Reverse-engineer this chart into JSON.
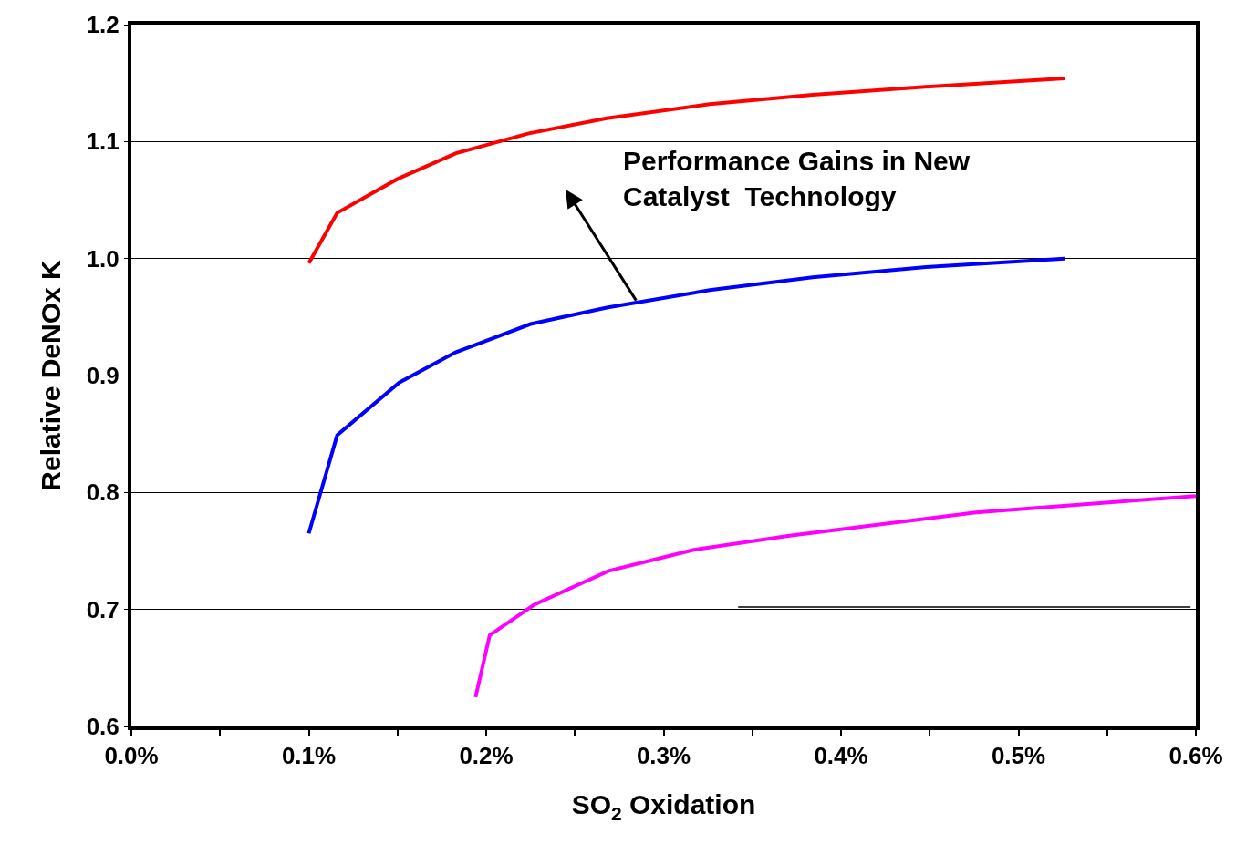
{
  "chart_data": {
    "type": "line",
    "xlabel": "SO$_{2}$ Oxidation",
    "ylabel": "Relative DeNOx K",
    "annotations": [
      "Performance Gains in New\nCatalyst  Technology"
    ],
    "series": [
      {
        "color": "#ff0000",
        "x": [
          0.1,
          0.116,
          0.15,
          0.183,
          0.224,
          0.268,
          0.326,
          0.384,
          0.45,
          0.526
        ],
        "values": [
          0.996,
          1.039,
          1.068,
          1.09,
          1.107,
          1.12,
          1.132,
          1.14,
          1.147,
          1.154
        ]
      },
      {
        "color": "#0000ff",
        "x": [
          0.1,
          0.116,
          0.151,
          0.183,
          0.225,
          0.268,
          0.326,
          0.384,
          0.45,
          0.526
        ],
        "values": [
          0.765,
          0.849,
          0.894,
          0.92,
          0.944,
          0.958,
          0.973,
          0.984,
          0.993,
          1.0
        ]
      },
      {
        "color": "#ff00ff",
        "x": [
          0.194,
          0.202,
          0.227,
          0.269,
          0.317,
          0.371,
          0.476,
          0.6
        ],
        "values": [
          0.625,
          0.678,
          0.704,
          0.733,
          0.751,
          0.763,
          0.783,
          0.797
        ]
      },
      {
        "color": "#000000",
        "x": [
          0.342,
          0.597
        ],
        "values": [
          0.702,
          0.702
        ]
      }
    ],
    "xlim": [
      0,
      0.6
    ],
    "ylim": [
      0.6,
      1.2
    ],
    "xticks": [
      {
        "value": 0,
        "label": "0.0%"
      },
      {
        "value": 0.05,
        "label": null
      },
      {
        "value": 0.1,
        "label": "0.1%"
      },
      {
        "value": 0.15,
        "label": null
      },
      {
        "value": 0.2,
        "label": "0.2%"
      },
      {
        "value": 0.25,
        "label": null
      },
      {
        "value": 0.3,
        "label": "0.3%"
      },
      {
        "value": 0.35,
        "label": null
      },
      {
        "value": 0.4,
        "label": "0.4%"
      },
      {
        "value": 0.45,
        "label": null
      },
      {
        "value": 0.5,
        "label": "0.5%"
      },
      {
        "value": 0.55,
        "label": null
      },
      {
        "value": 0.6,
        "label": "0.6%"
      }
    ],
    "yticks": [
      {
        "value": 0.6,
        "label": "0.6"
      },
      {
        "value": 0.7,
        "label": "0.7"
      },
      {
        "value": 0.8,
        "label": "0.8"
      },
      {
        "value": 0.9,
        "label": "0.9"
      },
      {
        "value": 1.0,
        "label": "1.0"
      },
      {
        "value": 1.1,
        "label": "1.1"
      },
      {
        "value": 1.2,
        "label": "1.2"
      }
    ],
    "grid": "y",
    "marker": "none",
    "line_style": "solid"
  }
}
